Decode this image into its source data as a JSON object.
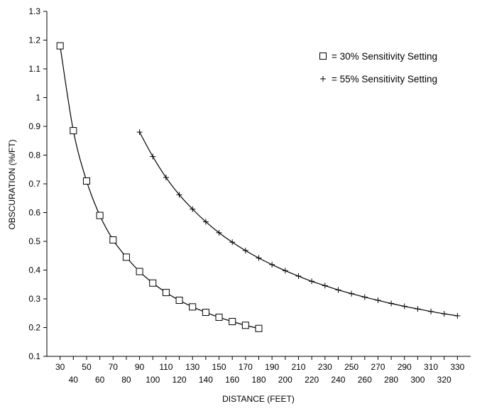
{
  "chart_data": {
    "type": "line",
    "title": "",
    "xlabel": "DISTANCE (FEET)",
    "ylabel": "OBSCURATION (%/FT)",
    "xlim": [
      20,
      340
    ],
    "ylim": [
      0.1,
      1.3
    ],
    "xticks": [
      30,
      40,
      50,
      60,
      70,
      80,
      90,
      100,
      110,
      120,
      130,
      140,
      150,
      160,
      170,
      180,
      190,
      200,
      210,
      220,
      230,
      240,
      250,
      260,
      270,
      280,
      290,
      300,
      310,
      320,
      330
    ],
    "yticks": [
      0.1,
      0.2,
      0.3,
      0.4,
      0.5,
      0.6,
      0.7,
      0.8,
      0.9,
      1.0,
      1.1,
      1.2,
      1.3
    ],
    "ytick_labels": [
      "0.1",
      "0.2",
      "0.3",
      "0.4",
      "0.5",
      "0.6",
      "0.7",
      "0.8",
      "0.9",
      "1",
      "1.1",
      "1.2",
      "1.3"
    ],
    "grid": false,
    "legend": "top-right",
    "series": [
      {
        "name": "= 30% Sensitivity Setting",
        "marker": "square",
        "x": [
          30,
          40,
          50,
          60,
          70,
          80,
          90,
          100,
          110,
          120,
          130,
          140,
          150,
          160,
          170,
          180
        ],
        "y": [
          1.18,
          0.885,
          0.71,
          0.59,
          0.505,
          0.445,
          0.395,
          0.355,
          0.322,
          0.295,
          0.272,
          0.253,
          0.236,
          0.221,
          0.208,
          0.197
        ]
      },
      {
        "name": "= 55% Sensitivity Setting",
        "marker": "plus",
        "x": [
          90,
          100,
          110,
          120,
          130,
          140,
          150,
          160,
          170,
          180,
          190,
          200,
          210,
          220,
          230,
          240,
          250,
          260,
          270,
          280,
          290,
          300,
          310,
          320,
          330
        ],
        "y": [
          0.88,
          0.795,
          0.722,
          0.662,
          0.612,
          0.568,
          0.53,
          0.497,
          0.468,
          0.442,
          0.419,
          0.398,
          0.379,
          0.361,
          0.346,
          0.331,
          0.318,
          0.306,
          0.295,
          0.284,
          0.274,
          0.265,
          0.256,
          0.248,
          0.241
        ]
      }
    ]
  }
}
